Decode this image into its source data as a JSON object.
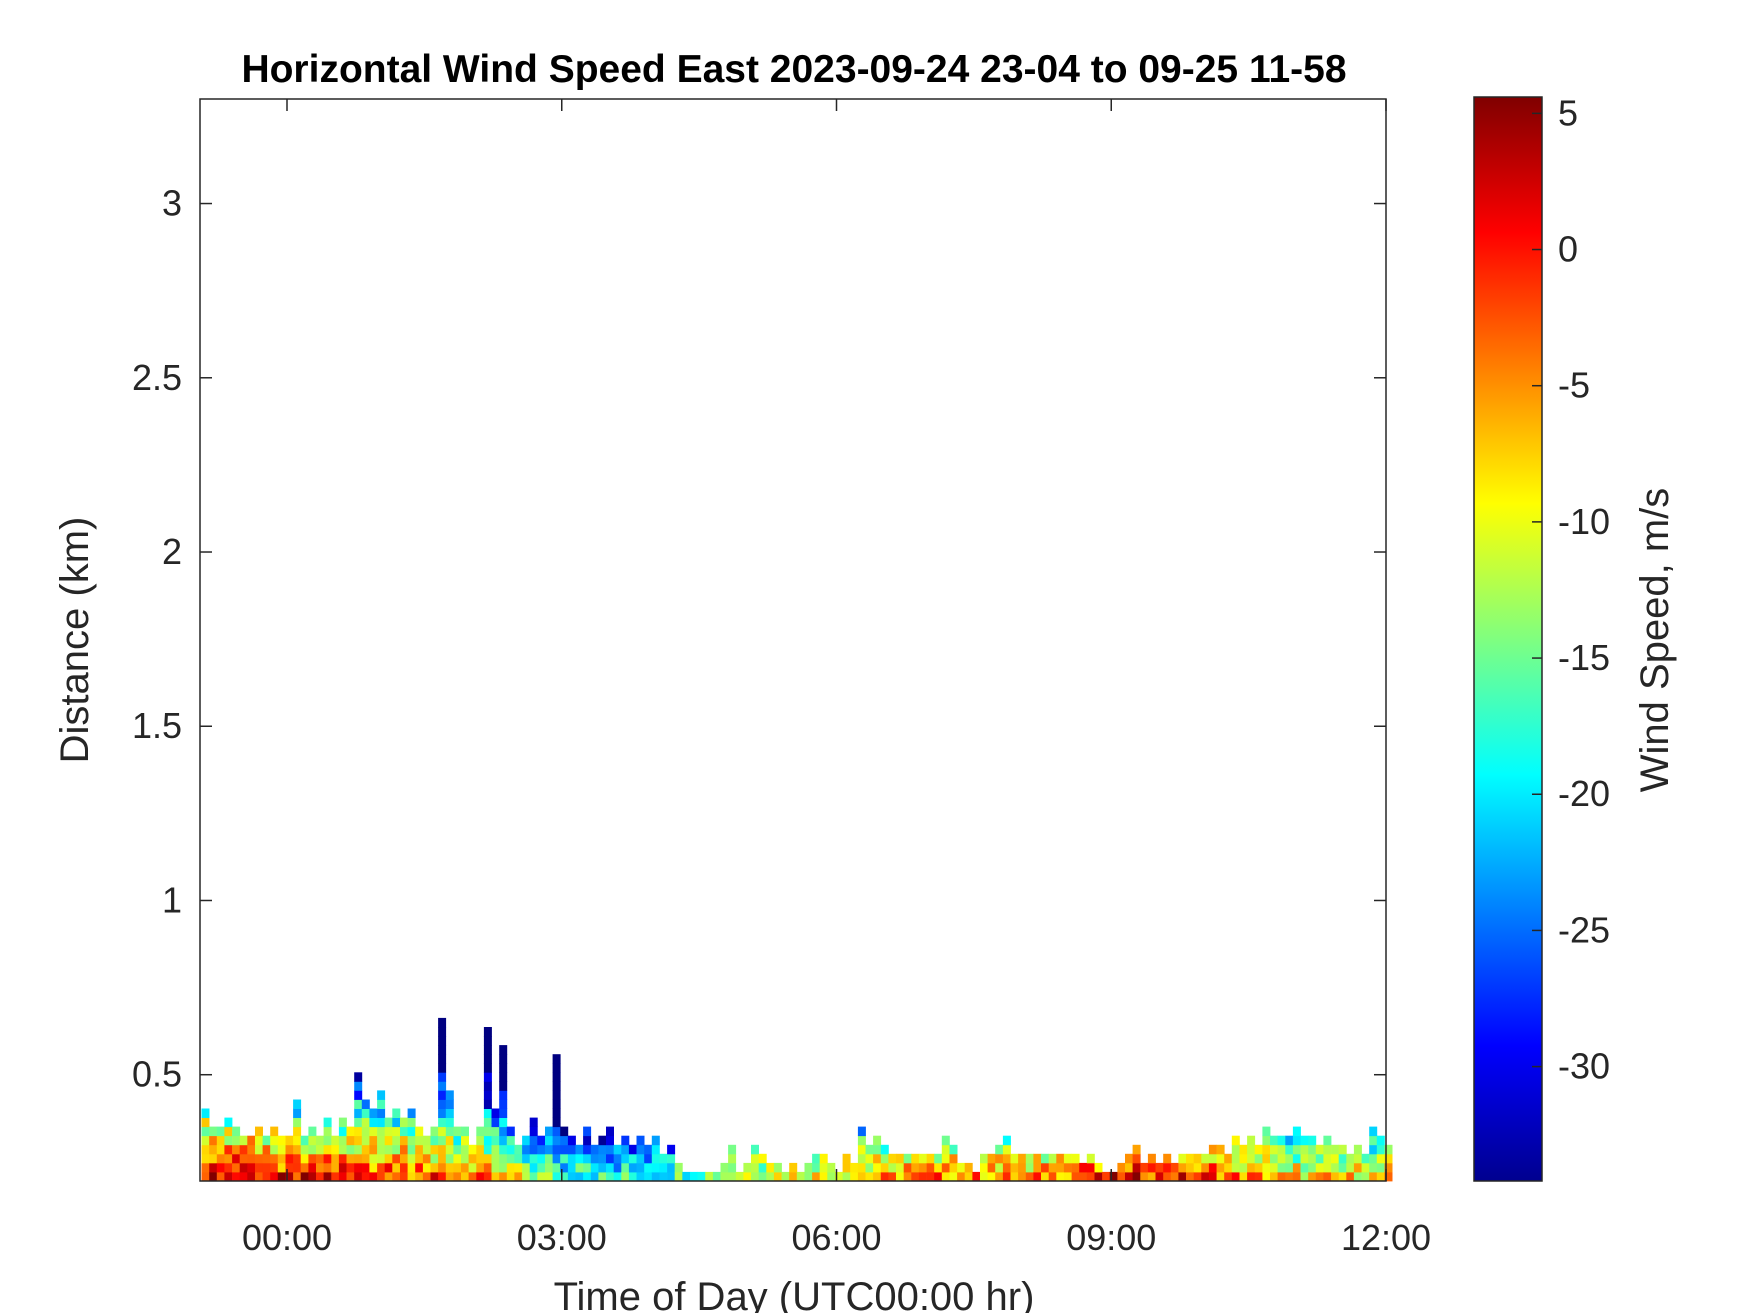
{
  "chart_data": {
    "type": "heatmap",
    "title": "Horizontal Wind Speed East 2023-09-24 23-04 to 09-25 11-58",
    "xlabel": "Time of Day (UTC00:00 hr)",
    "ylabel": "Distance (km)",
    "colorbar_label": "Wind Speed, m/s",
    "colormap": "jet",
    "xlim_hours": [
      -0.95,
      12.0
    ],
    "ylim_km": [
      0.195,
      3.3
    ],
    "clim": [
      -34.2,
      5.6
    ],
    "xticks": [
      {
        "v": 0,
        "label": "00:00"
      },
      {
        "v": 3,
        "label": "03:00"
      },
      {
        "v": 6,
        "label": "06:00"
      },
      {
        "v": 9,
        "label": "09:00"
      },
      {
        "v": 12,
        "label": "12:00"
      }
    ],
    "yticks": [
      {
        "v": 0.5,
        "label": "0.5"
      },
      {
        "v": 1,
        "label": "1"
      },
      {
        "v": 1.5,
        "label": "1.5"
      },
      {
        "v": 2,
        "label": "2"
      },
      {
        "v": 2.5,
        "label": "2.5"
      },
      {
        "v": 3,
        "label": "3"
      }
    ],
    "cticks": [
      {
        "v": 5,
        "label": "5"
      },
      {
        "v": 0,
        "label": "0"
      },
      {
        "v": -5,
        "label": "-5"
      },
      {
        "v": -10,
        "label": "-10"
      },
      {
        "v": -15,
        "label": "-15"
      },
      {
        "v": -20,
        "label": "-20"
      },
      {
        "v": -25,
        "label": "-25"
      },
      {
        "v": -30,
        "label": "-30"
      }
    ],
    "grid": false,
    "cells": {
      "start_hour": -0.9333,
      "step_minutes": 5,
      "bottom_km": 0.195,
      "row_km": 0.026,
      "rows_per_column": [
        8,
        6,
        6,
        7,
        6,
        5,
        5,
        6,
        5,
        6,
        5,
        5,
        9,
        5,
        6,
        5,
        7,
        5,
        7,
        6,
        12,
        9,
        8,
        10,
        7,
        8,
        7,
        8,
        6,
        5,
        6,
        18,
        10,
        6,
        6,
        4,
        6,
        17,
        8,
        15,
        6,
        4,
        5,
        7,
        5,
        6,
        14,
        6,
        5,
        4,
        6,
        4,
        5,
        6,
        4,
        5,
        4,
        5,
        4,
        5,
        3,
        4,
        2,
        1,
        1,
        1,
        1,
        1,
        2,
        4,
        1,
        2,
        4,
        3,
        2,
        2,
        1,
        2,
        1,
        2,
        3,
        3,
        2,
        1,
        3,
        2,
        6,
        4,
        5,
        4,
        3,
        3,
        3,
        3,
        3,
        3,
        3,
        5,
        4,
        2,
        2,
        1,
        3,
        3,
        4,
        5,
        3,
        3,
        3,
        3,
        3,
        3,
        3,
        3,
        3,
        2,
        3,
        2,
        1,
        1,
        2,
        3,
        4,
        2,
        3,
        2,
        3,
        2,
        3,
        3,
        3,
        3,
        4,
        4,
        3,
        5,
        4,
        5,
        4,
        6,
        5,
        5,
        5,
        6,
        5,
        5,
        4,
        5,
        4,
        4,
        3,
        4,
        3,
        6,
        5,
        4
      ],
      "hourly_surface_speed": [
        3,
        0,
        -1,
        -4,
        -17,
        -18,
        -9,
        -8,
        -4,
        -6,
        0,
        -1,
        -8,
        -8
      ],
      "speed_decrease_per_row": 2.6
    }
  }
}
